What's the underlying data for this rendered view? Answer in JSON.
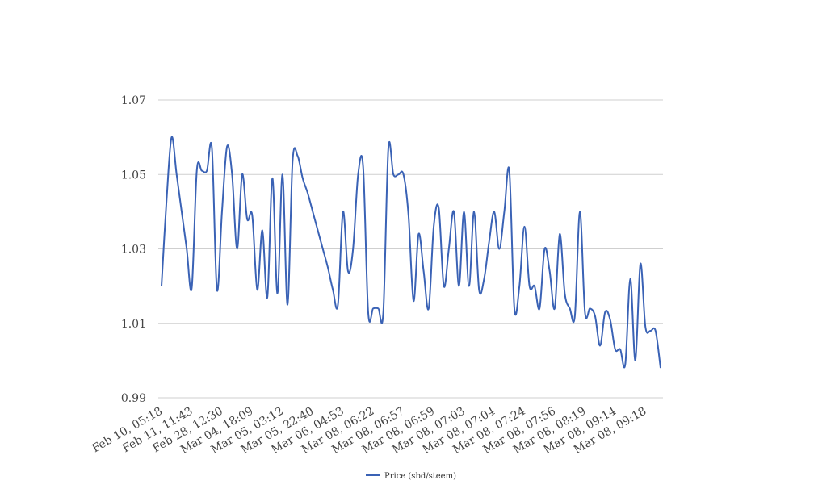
{
  "chart_data": {
    "type": "line",
    "categories": [
      "Feb 10, 05:18",
      null,
      null,
      null,
      null,
      null,
      "Feb 11, 11:43",
      null,
      null,
      null,
      null,
      null,
      "Feb 28, 12:30",
      null,
      null,
      null,
      null,
      null,
      "Mar 04, 18:09",
      null,
      null,
      null,
      null,
      null,
      "Mar 05, 03:12",
      null,
      null,
      null,
      null,
      null,
      "Mar 05, 22:40",
      null,
      null,
      null,
      null,
      null,
      "Mar 06, 04:53",
      null,
      null,
      null,
      null,
      null,
      "Mar 08, 06:22",
      null,
      null,
      null,
      null,
      null,
      "Mar 08, 06:57",
      null,
      null,
      null,
      null,
      null,
      "Mar 08, 06:59",
      null,
      null,
      null,
      null,
      null,
      "Mar 08, 07:03",
      null,
      null,
      null,
      null,
      null,
      "Mar 08, 07:04",
      null,
      null,
      null,
      null,
      null,
      "Mar 08, 07:24",
      null,
      null,
      null,
      null,
      null,
      "Mar 08, 07:56",
      null,
      null,
      null,
      null,
      null,
      "Mar 08, 08:19",
      null,
      null,
      null,
      null,
      null,
      "Mar 08, 09:14",
      null,
      null,
      null,
      null,
      null,
      "Mar 08, 09:18",
      null,
      null,
      null
    ],
    "series": [
      {
        "name": "Price (sbd/steem)",
        "color": "#3a62b5",
        "values": [
          1.02,
          1.043,
          1.06,
          1.05,
          1.04,
          1.03,
          1.0195,
          1.051,
          1.051,
          1.051,
          1.057,
          1.019,
          1.04,
          1.0575,
          1.05,
          1.03,
          1.05,
          1.038,
          1.039,
          1.019,
          1.035,
          1.017,
          1.049,
          1.018,
          1.05,
          1.015,
          1.0535,
          1.055,
          1.049,
          1.045,
          1.04,
          1.035,
          1.03,
          1.025,
          1.019,
          1.015,
          1.04,
          1.024,
          1.03,
          1.05,
          1.052,
          1.013,
          1.014,
          1.014,
          1.013,
          1.057,
          1.05,
          1.05,
          1.05,
          1.039,
          1.016,
          1.034,
          1.024,
          1.014,
          1.036,
          1.041,
          1.02,
          1.03,
          1.04,
          1.02,
          1.04,
          1.02,
          1.04,
          1.019,
          1.022,
          1.032,
          1.04,
          1.03,
          1.04,
          1.051,
          1.014,
          1.02,
          1.036,
          1.02,
          1.02,
          1.014,
          1.03,
          1.024,
          1.014,
          1.034,
          1.018,
          1.014,
          1.012,
          1.04,
          1.013,
          1.014,
          1.012,
          1.004,
          1.013,
          1.011,
          1.003,
          1.003,
          0.999,
          1.022,
          1.0,
          1.026,
          1.009,
          1.008,
          1.008,
          0.998
        ]
      }
    ],
    "ylim": [
      0.99,
      1.07
    ],
    "yticks": [
      0.99,
      1.01,
      1.03,
      1.05,
      1.07
    ],
    "grid": true,
    "legend": "bottom"
  }
}
